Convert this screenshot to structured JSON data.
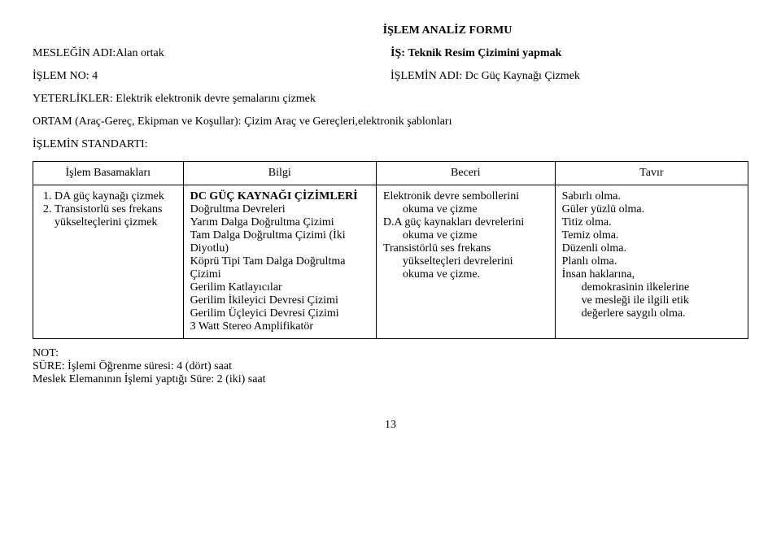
{
  "title": "İŞLEM ANALİZ FORMU",
  "meslek_label": "MESLEĞİN ADI:",
  "meslek_value": "Alan ortak",
  "is_label": "İŞ:",
  "is_value": "Teknik Resim Çizimini yapmak",
  "islem_no_label": "İŞLEM NO:",
  "islem_no_value": "4",
  "islemin_adi_label": "İŞLEMİN ADI:",
  "islemin_adi_value": "Dc Güç Kaynağı Çizmek",
  "yeterlikler_label": "YETERLİKLER:",
  "yeterlikler_value": "Elektrik elektronik devre şemalarını çizmek",
  "ortam_label": "ORTAM (Araç-Gereç, Ekipman ve Koşullar):",
  "ortam_value": "Çizim Araç ve Gereçleri,elektronik şablonları",
  "standart_label": "İŞLEMİN STANDARTI:",
  "headers": {
    "basamak": "İşlem Basamakları",
    "bilgi": "Bilgi",
    "beceri": "Beceri",
    "tavir": "Tavır"
  },
  "basamak": {
    "i1": "DA güç kaynağı çizmek",
    "i2": "Transistorlü ses frekans yükselteçlerini çizmek"
  },
  "bilgi": {
    "t": "DC GÜÇ KAYNAĞI ÇİZİMLERİ",
    "l1": "Doğrultma Devreleri",
    "l2": "Yarım Dalga Doğrultma Çizimi",
    "l3": "Tam Dalga Doğrultma Çizimi (İki Diyotlu)",
    "l4": "Köprü Tipi Tam Dalga Doğrultma Çizimi",
    "l5": "Gerilim Katlayıcılar",
    "l6": "Gerilim İkileyici Devresi Çizimi",
    "l7": "Gerilim Üçleyici Devresi Çizimi",
    "l8": "3 Watt Stereo Amplifikatör"
  },
  "beceri": {
    "l1a": "Elektronik devre sembollerini",
    "l1b": "okuma ve çizme",
    "l2a": "D.A güç kaynakları devrelerini",
    "l2b": "okuma ve çizme",
    "l3a": "Transistörlü ses frekans",
    "l3b": "yükselteçleri devrelerini",
    "l3c": "okuma ve çizme."
  },
  "tavir": {
    "l1": "Sabırlı olma.",
    "l2": "Güler yüzlü olma.",
    "l3": "Titiz olma.",
    "l4": "Temiz olma.",
    "l5": "Düzenli olma.",
    "l6": "Planlı olma.",
    "l7a": "İnsan haklarına,",
    "l7b": "demokrasinin ilkelerine",
    "l7c": "ve mesleği ile ilgili etik",
    "l7d": "değerlere saygılı olma."
  },
  "footer": {
    "not": "NOT:",
    "sure1": "SÜRE: İşlemi Öğrenme süresi: 4 (dört) saat",
    "sure2": "Meslek Elemanının İşlemi yaptığı Süre: 2 (iki) saat"
  },
  "page_number": "13"
}
